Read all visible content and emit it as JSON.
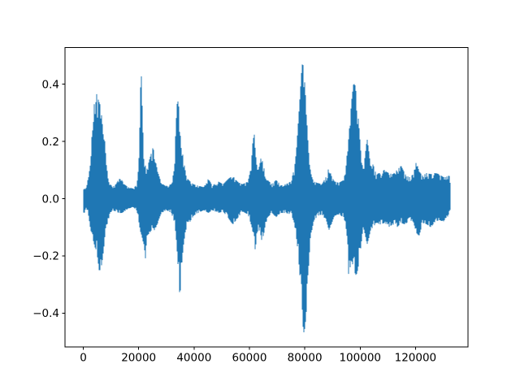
{
  "figure_title": "",
  "chart_data": {
    "type": "line",
    "subtype": "audio-waveform-envelope",
    "title": "",
    "xlabel": "",
    "ylabel": "",
    "legend": null,
    "grid": false,
    "background_color": "#ffffff",
    "spine_color": "#000000",
    "line_color": "#1f77b4",
    "x_ticks": [
      0,
      20000,
      40000,
      60000,
      80000,
      100000,
      120000
    ],
    "x_tick_labels": [
      "0",
      "20000",
      "40000",
      "60000",
      "80000",
      "100000",
      "120000"
    ],
    "y_ticks": [
      -0.4,
      -0.2,
      0.0,
      0.2,
      0.4
    ],
    "y_tick_labels": [
      "−0.4",
      "−0.2",
      "0.0",
      "0.2",
      "0.4"
    ],
    "xlim": [
      -6620,
      139020
    ],
    "ylim": [
      -0.5175,
      0.5275
    ],
    "n_samples": 132400,
    "y_peak_max": 0.48,
    "y_peak_min": -0.47,
    "envelope_points_format": [
      "x_sample",
      "y_min",
      "y_max"
    ],
    "envelope": [
      [
        0,
        -0.025,
        0.025
      ],
      [
        250,
        -0.07,
        0.045
      ],
      [
        500,
        -0.04,
        0.03
      ],
      [
        1200,
        -0.035,
        0.04
      ],
      [
        1900,
        -0.06,
        0.09
      ],
      [
        2500,
        -0.1,
        0.14
      ],
      [
        3100,
        -0.13,
        0.22
      ],
      [
        3700,
        -0.15,
        0.3
      ],
      [
        4200,
        -0.17,
        0.36
      ],
      [
        4700,
        -0.18,
        0.37
      ],
      [
        5200,
        -0.21,
        0.35
      ],
      [
        5700,
        -0.25,
        0.34
      ],
      [
        6300,
        -0.25,
        0.32
      ],
      [
        6800,
        -0.22,
        0.27
      ],
      [
        7300,
        -0.19,
        0.21
      ],
      [
        7800,
        -0.13,
        0.2
      ],
      [
        8300,
        -0.1,
        0.12
      ],
      [
        8900,
        -0.08,
        0.08
      ],
      [
        9600,
        -0.055,
        0.055
      ],
      [
        10500,
        -0.04,
        0.04
      ],
      [
        11800,
        -0.045,
        0.05
      ],
      [
        12900,
        -0.05,
        0.07
      ],
      [
        13900,
        -0.05,
        0.065
      ],
      [
        14800,
        -0.045,
        0.05
      ],
      [
        16200,
        -0.035,
        0.04
      ],
      [
        18000,
        -0.03,
        0.035
      ],
      [
        19400,
        -0.045,
        0.05
      ],
      [
        20200,
        -0.09,
        0.16
      ],
      [
        20700,
        -0.12,
        0.4
      ],
      [
        21000,
        -0.13,
        0.43
      ],
      [
        21400,
        -0.14,
        0.27
      ],
      [
        21900,
        -0.17,
        0.15
      ],
      [
        22300,
        -0.25,
        0.12
      ],
      [
        22900,
        -0.13,
        0.1
      ],
      [
        24000,
        -0.12,
        0.14
      ],
      [
        25200,
        -0.1,
        0.18
      ],
      [
        26100,
        -0.12,
        0.13
      ],
      [
        27000,
        -0.08,
        0.09
      ],
      [
        28200,
        -0.05,
        0.055
      ],
      [
        30000,
        -0.04,
        0.045
      ],
      [
        31800,
        -0.05,
        0.05
      ],
      [
        32800,
        -0.08,
        0.1
      ],
      [
        33400,
        -0.12,
        0.25
      ],
      [
        34000,
        -0.2,
        0.35
      ],
      [
        34500,
        -0.28,
        0.32
      ],
      [
        34900,
        -0.35,
        0.24
      ],
      [
        35500,
        -0.24,
        0.19
      ],
      [
        36100,
        -0.17,
        0.14
      ],
      [
        36800,
        -0.12,
        0.1
      ],
      [
        37600,
        -0.09,
        0.07
      ],
      [
        38600,
        -0.08,
        0.06
      ],
      [
        39800,
        -0.06,
        0.05
      ],
      [
        41500,
        -0.05,
        0.045
      ],
      [
        43500,
        -0.04,
        0.04
      ],
      [
        45200,
        -0.05,
        0.07
      ],
      [
        46600,
        -0.04,
        0.045
      ],
      [
        48700,
        -0.05,
        0.06
      ],
      [
        50500,
        -0.045,
        0.05
      ],
      [
        52500,
        -0.07,
        0.07
      ],
      [
        54000,
        -0.09,
        0.08
      ],
      [
        55600,
        -0.07,
        0.06
      ],
      [
        57500,
        -0.045,
        0.05
      ],
      [
        59500,
        -0.055,
        0.06
      ],
      [
        60600,
        -0.09,
        0.11
      ],
      [
        61300,
        -0.12,
        0.21
      ],
      [
        61700,
        -0.13,
        0.25
      ],
      [
        62100,
        -0.22,
        0.17
      ],
      [
        62600,
        -0.13,
        0.12
      ],
      [
        63300,
        -0.1,
        0.1
      ],
      [
        64100,
        -0.14,
        0.14
      ],
      [
        64800,
        -0.15,
        0.13
      ],
      [
        65600,
        -0.1,
        0.09
      ],
      [
        66600,
        -0.065,
        0.065
      ],
      [
        68200,
        -0.05,
        0.05
      ],
      [
        69600,
        -0.065,
        0.065
      ],
      [
        71200,
        -0.05,
        0.05
      ],
      [
        73200,
        -0.05,
        0.05
      ],
      [
        75000,
        -0.055,
        0.06
      ],
      [
        76100,
        -0.08,
        0.1
      ],
      [
        76900,
        -0.13,
        0.16
      ],
      [
        77600,
        -0.19,
        0.26
      ],
      [
        78300,
        -0.28,
        0.36
      ],
      [
        78800,
        -0.36,
        0.44
      ],
      [
        79200,
        -0.43,
        0.48
      ],
      [
        79600,
        -0.47,
        0.45
      ],
      [
        80100,
        -0.45,
        0.39
      ],
      [
        80600,
        -0.39,
        0.3
      ],
      [
        81100,
        -0.29,
        0.21
      ],
      [
        81700,
        -0.19,
        0.12
      ],
      [
        82400,
        -0.12,
        0.08
      ],
      [
        83200,
        -0.08,
        0.06
      ],
      [
        84600,
        -0.06,
        0.055
      ],
      [
        86200,
        -0.055,
        0.05
      ],
      [
        87900,
        -0.08,
        0.08
      ],
      [
        88700,
        -0.11,
        0.11
      ],
      [
        89600,
        -0.09,
        0.08
      ],
      [
        90700,
        -0.06,
        0.06
      ],
      [
        92300,
        -0.055,
        0.055
      ],
      [
        94000,
        -0.065,
        0.065
      ],
      [
        94800,
        -0.1,
        0.1
      ],
      [
        95400,
        -0.18,
        0.17
      ],
      [
        95900,
        -0.28,
        0.22
      ],
      [
        96400,
        -0.24,
        0.28
      ],
      [
        97000,
        -0.22,
        0.35
      ],
      [
        97600,
        -0.24,
        0.4
      ],
      [
        98100,
        -0.26,
        0.4
      ],
      [
        98700,
        -0.27,
        0.36
      ],
      [
        99300,
        -0.24,
        0.29
      ],
      [
        99900,
        -0.2,
        0.21
      ],
      [
        100500,
        -0.15,
        0.13
      ],
      [
        101200,
        -0.1,
        0.1
      ],
      [
        101900,
        -0.13,
        0.16
      ],
      [
        102500,
        -0.16,
        0.21
      ],
      [
        103100,
        -0.14,
        0.17
      ],
      [
        103800,
        -0.11,
        0.11
      ],
      [
        104700,
        -0.1,
        0.12
      ],
      [
        105800,
        -0.085,
        0.085
      ],
      [
        107200,
        -0.09,
        0.09
      ],
      [
        108700,
        -0.085,
        0.1
      ],
      [
        110200,
        -0.1,
        0.09
      ],
      [
        111800,
        -0.09,
        0.085
      ],
      [
        113300,
        -0.1,
        0.1
      ],
      [
        114800,
        -0.085,
        0.115
      ],
      [
        116300,
        -0.09,
        0.085
      ],
      [
        117800,
        -0.075,
        0.075
      ],
      [
        119200,
        -0.08,
        0.085
      ],
      [
        120300,
        -0.12,
        0.13
      ],
      [
        121300,
        -0.13,
        0.095
      ],
      [
        122600,
        -0.085,
        0.08
      ],
      [
        124100,
        -0.09,
        0.09
      ],
      [
        125600,
        -0.1,
        0.085
      ],
      [
        127100,
        -0.08,
        0.09
      ],
      [
        128600,
        -0.075,
        0.085
      ],
      [
        130100,
        -0.08,
        0.075
      ],
      [
        131200,
        -0.065,
        0.075
      ],
      [
        132100,
        -0.06,
        0.09
      ],
      [
        132400,
        -0.04,
        0.06
      ]
    ]
  }
}
